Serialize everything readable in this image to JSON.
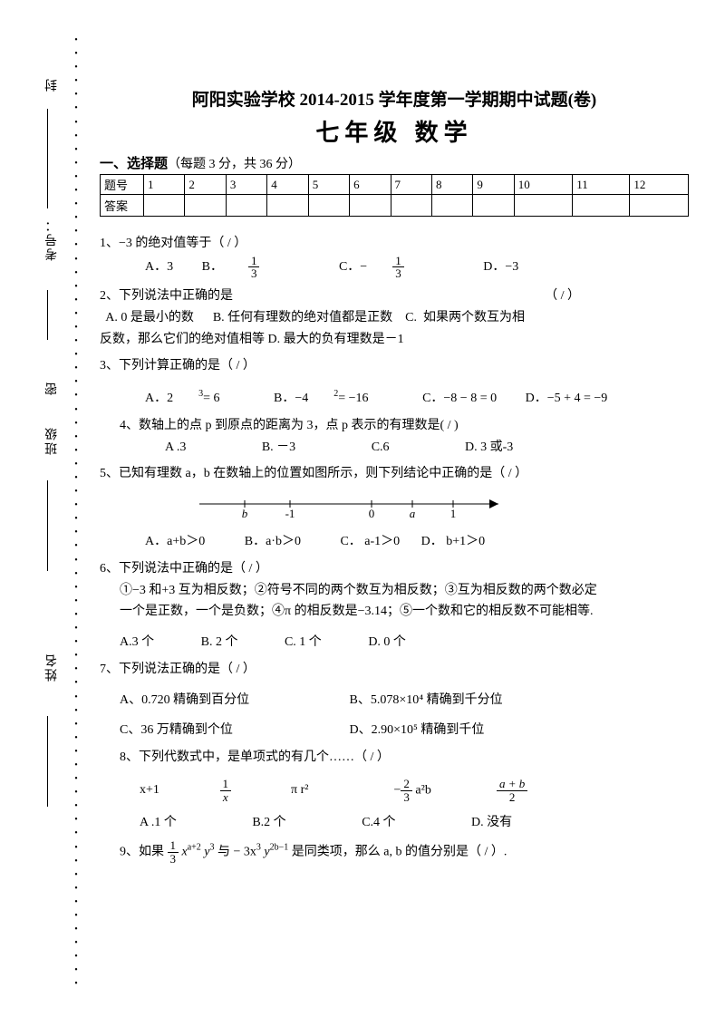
{
  "side": {
    "labels": {
      "feng": "封",
      "kaohao": "考号：",
      "mi": "密",
      "banji": "班级",
      "xingming": "姓名"
    },
    "dots": "•"
  },
  "header": {
    "line1": "阿阳实验学校 2014-2015 学年度第一学期期中试题(卷)",
    "line2": "七年级   数学"
  },
  "section": {
    "title": "一、选择题",
    "sub": "（每题 3 分，共 36 分）"
  },
  "table": {
    "rowhead1": "题号",
    "rowhead2": "答案",
    "cols": [
      "1",
      "2",
      "3",
      "4",
      "5",
      "6",
      "7",
      "8",
      "9",
      "10",
      "11",
      "12"
    ]
  },
  "q1": {
    "stem": "1、−3 的绝对值等于（  /  ）",
    "A": "A．3",
    "B_pre": "B．",
    "B_num": "1",
    "B_den": "3",
    "C_pre": "C．−",
    "C_num": "1",
    "C_den": "3",
    "D": "D．−3"
  },
  "q2": {
    "stem": "2、下列说法中正确的是",
    "paren": "（    /   ）",
    "line2": "  A. 0 是最小的数      B. 任何有理数的绝对值都是正数    C.  如果两个数互为相",
    "line3": "反数，那么它们的绝对值相等       D.  最大的负有理数是－1"
  },
  "q3": {
    "stem": "3、下列计算正确的是（  /    ）",
    "A": "A．2",
    "A_sup": "3",
    "A_tail": " = 6",
    "B": "B．−4",
    "B_sup": "2",
    "B_tail": " = −16",
    "C": "C．−8 − 8 = 0",
    "D": "D．−5 + 4 = −9"
  },
  "q4": {
    "stem": "4、数轴上的点 p 到原点的距离为 3，点 p 表示的有理数是(  /   )",
    "A": "A .3",
    "B": "B. －3",
    "C": "C.6",
    "D": "D. 3 或-3"
  },
  "q5": {
    "stem": "5、已知有理数 a，b 在数轴上的位置如图所示，则下列结论中正确的是（   /   ）",
    "labels": {
      "b": "b",
      "m1": "-1",
      "zero": "0",
      "a": "a",
      "one": "1"
    },
    "A": "A．a+b＞0",
    "B": "B．a·b＞0",
    "C": "C．   a-1＞0",
    "D": "D．    b+1＞0"
  },
  "q6": {
    "stem": "6、下列说法中正确的是（   /    ）",
    "l1": "①−3 和+3 互为相反数；②符号不同的两个数互为相反数；③互为相反数的两个数必定",
    "l2": "一个是正数，一个是负数；④π 的相反数是−3.14；⑤一个数和它的相反数不可能相等.",
    "A": "A.3 个",
    "B": "B. 2 个",
    "C": "C. 1 个",
    "D": "D. 0 个"
  },
  "q7": {
    "stem": "7、下列说法正确的是（      /    ）",
    "A": "A、0.720 精确到百分位",
    "B": "B、5.078×10⁴ 精确到千分位",
    "C": "C、36 万精确到个位",
    "D": "D、2.90×10⁵ 精确到千位"
  },
  "q8": {
    "stem": "8、下列代数式中，是单项式的有几个……（  /   ）",
    "items": {
      "a": "x+1",
      "b_num": "1",
      "b_den": "x",
      "c": "π r²",
      "d_pre": "−",
      "d_num": "2",
      "d_den": "3",
      "d_post": " a²b",
      "e_num": "a + b",
      "e_den": "2"
    },
    "A": "A .1 个",
    "B": "B.2 个",
    "C": "C.4 个",
    "D": "D. 没有"
  },
  "q9": {
    "pre": "9、如果 ",
    "f1_num": "1",
    "f1_den": "3",
    "mid1": " x",
    "exp1": "a+2",
    "mid2": " y",
    "exp2": "3",
    "mid3": " 与 − 3x",
    "exp3": "3",
    "mid4": " y",
    "exp4": "2b−1",
    "tail": " 是同类项，那么 a, b 的值分别是（   /   ）."
  }
}
